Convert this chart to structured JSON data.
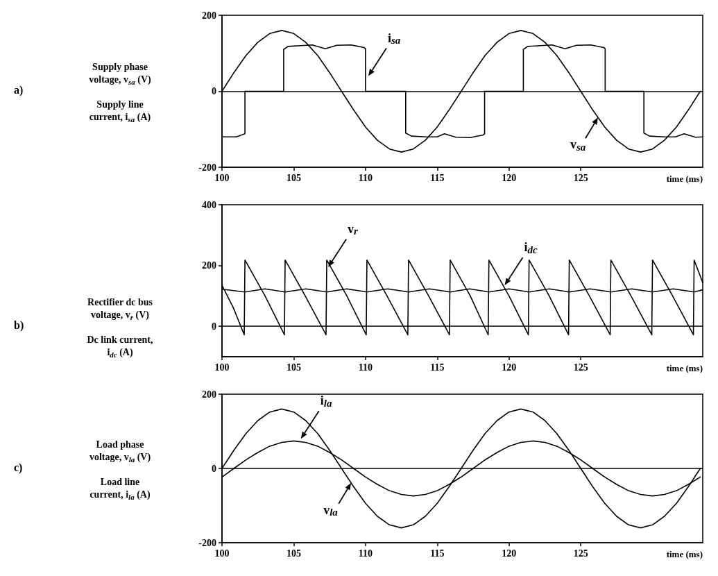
{
  "chart_data": [
    {
      "type": "line",
      "ylabel": "Supply phase voltage, v$_{sa}$ (V)",
      "xlabel": "time (ms)",
      "xlim": [
        100,
        133.5
      ],
      "xticks": [
        100,
        105,
        110,
        115,
        120,
        125
      ],
      "ylim": [
        -200,
        200
      ],
      "yticks": [
        -200,
        0,
        200
      ],
      "ref_lines": [
        {
          "axis": "y",
          "value": 0
        }
      ],
      "annotations": [
        "a)",
        "Supply line current, i$_{sa}$ (A)",
        {
          "text": "i$_{sa}$",
          "x": 110.2,
          "y": 40
        },
        {
          "text": "v$_{sa}$",
          "x": 126.2,
          "y": -69
        }
      ],
      "series": [
        {
          "color": "#000000",
          "x": [
            100,
            100.83,
            101.67,
            102.5,
            103.33,
            104.17,
            105,
            105.83,
            106.67,
            107.5,
            108.33,
            109.17,
            110,
            110.83,
            111.67,
            112.5,
            113.33,
            114.17,
            115,
            115.83,
            116.67,
            117.5,
            118.33,
            119.17,
            120,
            120.83,
            121.67,
            122.5,
            123.33,
            124.17,
            125,
            125.83,
            126.67,
            127.5,
            128.33,
            129.17,
            130,
            130.83,
            131.67,
            132.5,
            133.33
          ],
          "values": [
            0,
            49,
            94,
            129,
            152,
            160,
            152,
            129,
            94,
            49,
            0,
            -49,
            -94,
            -129,
            -152,
            -160,
            -152,
            -129,
            -94,
            -49,
            0,
            49,
            94,
            129,
            152,
            160,
            152,
            129,
            94,
            49,
            0,
            -49,
            -94,
            -129,
            -152,
            -160,
            -152,
            -129,
            -94,
            -49,
            0
          ]
        },
        {
          "color": "#000000",
          "x": [
            100,
            101,
            101.6,
            101.6,
            104.3,
            104.3,
            104.6,
            105.5,
            106.3,
            107.2,
            108,
            109,
            109.9,
            110,
            110,
            112.8,
            112.8,
            113.2,
            114.2,
            115,
            115.5,
            116.3,
            117.3,
            118.2,
            118.3,
            118.3,
            121,
            121,
            121.3,
            122.2,
            123,
            123.9,
            124.7,
            125.7,
            126.6,
            126.7,
            126.7,
            129.4,
            129.4,
            129.8,
            130.8,
            131.6,
            132.2,
            133,
            133.5
          ],
          "values": [
            -120,
            -120,
            -112,
            0,
            0,
            110,
            118,
            120,
            122,
            112,
            121,
            122,
            115,
            112,
            0,
            0,
            -110,
            -118,
            -120,
            -120,
            -112,
            -121,
            -122,
            -115,
            -112,
            0,
            0,
            110,
            118,
            120,
            122,
            112,
            121,
            122,
            115,
            112,
            0,
            0,
            -110,
            -118,
            -120,
            -120,
            -112,
            -121,
            -120
          ]
        }
      ]
    },
    {
      "type": "line",
      "ylabel": "Rectifier dc bus voltage, v$_{r}$ (V)",
      "xlabel": "time (ms)",
      "xlim": [
        100,
        133.5
      ],
      "xticks": [
        100,
        105,
        110,
        115,
        120,
        125
      ],
      "ylim": [
        -100,
        400
      ],
      "yticks": [
        0,
        200,
        400
      ],
      "ref_lines": [
        {
          "axis": "y",
          "value": 0
        }
      ],
      "annotations": [
        "b)",
        "Dc link current, i$_{dc}$ (A)",
        {
          "text": "v$_{r}$",
          "x": 107.4,
          "y": 195
        },
        {
          "text": "i$_{dc}$",
          "x": 119.7,
          "y": 135
        }
      ],
      "series": [
        {
          "color": "#000000",
          "x": [
            100,
            100.8,
            101.55,
            101.6,
            103,
            104.35,
            104.4,
            105.8,
            107.25,
            107.3,
            108.7,
            110.05,
            110.1,
            111.5,
            112.95,
            113,
            114.4,
            115.85,
            115.9,
            117.3,
            118.55,
            118.6,
            120,
            121.35,
            121.4,
            122.8,
            124.15,
            124.2,
            125.6,
            127.05,
            127.1,
            128.5,
            129.95,
            130,
            131.4,
            132.85,
            132.9,
            133.5
          ],
          "values": [
            135,
            60,
            -28,
            218,
            100,
            -28,
            218,
            100,
            -28,
            218,
            100,
            -28,
            218,
            100,
            -28,
            218,
            100,
            -28,
            218,
            100,
            -28,
            218,
            100,
            -28,
            218,
            100,
            -28,
            218,
            100,
            -28,
            218,
            100,
            -28,
            218,
            100,
            -28,
            218,
            144
          ]
        },
        {
          "color": "#000000",
          "x": [
            100,
            101.6,
            103,
            104.4,
            105.85,
            107.3,
            108.7,
            110.1,
            111.55,
            113,
            114.45,
            115.9,
            117.25,
            118.6,
            120,
            121.4,
            122.8,
            124.2,
            125.65,
            127.1,
            128.55,
            130,
            131.45,
            132.9,
            133.5
          ],
          "values": [
            122,
            113,
            123,
            113,
            123,
            113,
            123,
            113,
            123,
            113,
            123,
            113,
            123,
            113,
            123,
            113,
            123,
            113,
            123,
            113,
            123,
            113,
            123,
            113,
            120
          ]
        }
      ]
    },
    {
      "type": "line",
      "ylabel": "Load phase voltage, v$_{la}$ (V)",
      "xlabel": "time (ms)",
      "xlim": [
        100,
        133.5
      ],
      "xticks": [
        100,
        105,
        110,
        115,
        120,
        125
      ],
      "ylim": [
        -200,
        200
      ],
      "yticks": [
        -200,
        0,
        200
      ],
      "ref_lines": [
        {
          "axis": "y",
          "value": 0
        }
      ],
      "annotations": [
        "c)",
        "Load line current, i$_{la}$ (A)",
        {
          "text": "i$_{la}$",
          "x": 105.5,
          "y": 80
        },
        {
          "text": "v$_{la}$",
          "x": 109,
          "y": -39
        }
      ],
      "series": [
        {
          "color": "#000000",
          "x": [
            100,
            100.83,
            101.67,
            102.5,
            103.33,
            104.17,
            105,
            105.83,
            106.67,
            107.5,
            108.33,
            109.17,
            110,
            110.83,
            111.67,
            112.5,
            113.33,
            114.17,
            115,
            115.83,
            116.67,
            117.5,
            118.33,
            119.17,
            120,
            120.83,
            121.67,
            122.5,
            123.33,
            124.17,
            125,
            125.83,
            126.67,
            127.5,
            128.33,
            129.17,
            130,
            130.83,
            131.67,
            132.5,
            133.33
          ],
          "values": [
            0,
            49,
            94,
            129,
            152,
            160,
            152,
            129,
            94,
            49,
            0,
            -49,
            -94,
            -129,
            -152,
            -160,
            -152,
            -129,
            -94,
            -49,
            0,
            49,
            94,
            129,
            152,
            160,
            152,
            129,
            94,
            49,
            0,
            -49,
            -94,
            -129,
            -152,
            -160,
            -152,
            -129,
            -94,
            -49,
            0
          ]
        },
        {
          "color": "#000000",
          "x": [
            100,
            100.83,
            101.67,
            102.5,
            103.33,
            104.17,
            105,
            105.83,
            106.67,
            107.5,
            108.33,
            109.17,
            110,
            110.83,
            111.67,
            112.5,
            113.33,
            114.17,
            115,
            115.83,
            116.67,
            117.5,
            118.33,
            119.17,
            120,
            120.83,
            121.67,
            122.5,
            123.33,
            124.17,
            125,
            125.83,
            126.67,
            127.5,
            128.33,
            129.17,
            130,
            130.83,
            131.67,
            132.5,
            133.33
          ],
          "values": [
            -23,
            0,
            23,
            43,
            60,
            70,
            74,
            70,
            60,
            43,
            23,
            0,
            -23,
            -43,
            -60,
            -70,
            -74,
            -70,
            -60,
            -43,
            -23,
            0,
            23,
            43,
            60,
            70,
            74,
            70,
            60,
            43,
            23,
            0,
            -23,
            -43,
            -60,
            -70,
            -74,
            -70,
            -60,
            -43,
            -23
          ]
        }
      ]
    }
  ]
}
